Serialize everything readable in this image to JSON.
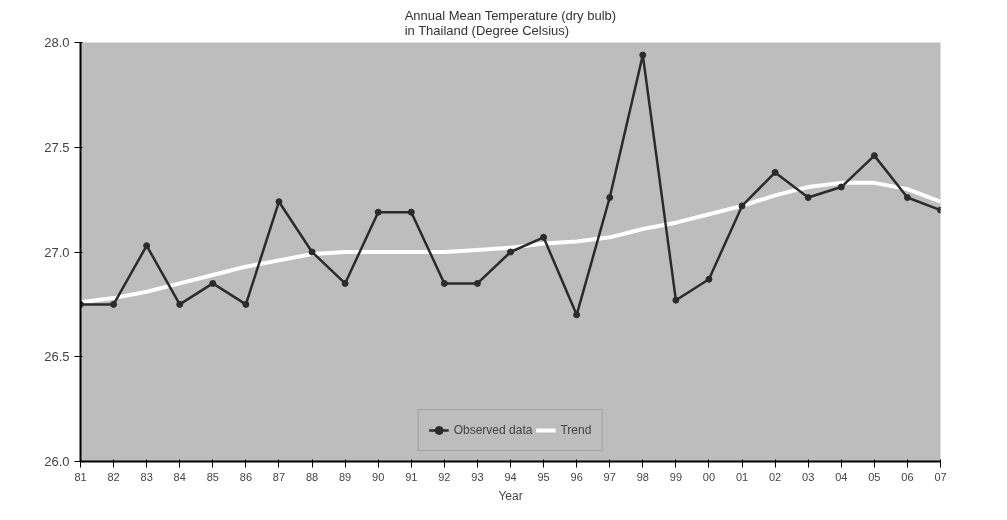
{
  "chart_data": {
    "type": "line",
    "title": "Annual Mean Temperature (dry bulb)\nin Thailand (Degree Celsius)",
    "xlabel": "Year",
    "categories": [
      "81",
      "82",
      "83",
      "84",
      "85",
      "86",
      "87",
      "88",
      "89",
      "90",
      "91",
      "92",
      "93",
      "94",
      "95",
      "96",
      "97",
      "98",
      "99",
      "00",
      "01",
      "02",
      "03",
      "04",
      "05",
      "06",
      "07"
    ],
    "series": [
      {
        "name": "Observed data",
        "color": "#2b2b2b",
        "marker": "circle",
        "values": [
          26.75,
          26.75,
          27.03,
          26.75,
          26.85,
          26.75,
          27.24,
          27.0,
          26.85,
          27.19,
          27.19,
          26.85,
          26.85,
          27.0,
          27.07,
          26.7,
          27.26,
          27.94,
          26.77,
          26.87,
          27.22,
          27.38,
          27.26,
          27.31,
          27.46,
          27.26,
          27.2
        ]
      },
      {
        "name": "Trend",
        "color": "#ffffff",
        "marker": "none",
        "values": [
          26.76,
          26.78,
          26.81,
          26.85,
          26.89,
          26.93,
          26.96,
          26.99,
          27.0,
          27.0,
          27.0,
          27.0,
          27.01,
          27.02,
          27.04,
          27.05,
          27.07,
          27.11,
          27.14,
          27.18,
          27.22,
          27.27,
          27.31,
          27.33,
          27.33,
          27.3,
          27.24
        ]
      }
    ],
    "ylim": [
      26,
      28
    ],
    "yticks": [
      {
        "value": 26,
        "label": "26.0"
      },
      {
        "value": 26.5,
        "label": "26.5"
      },
      {
        "value": 27,
        "label": "27.0"
      },
      {
        "value": 27.5,
        "label": "27.5"
      },
      {
        "value": 28,
        "label": "28.0"
      }
    ],
    "grid": false,
    "legend": "bottom",
    "line_style": "solid"
  }
}
